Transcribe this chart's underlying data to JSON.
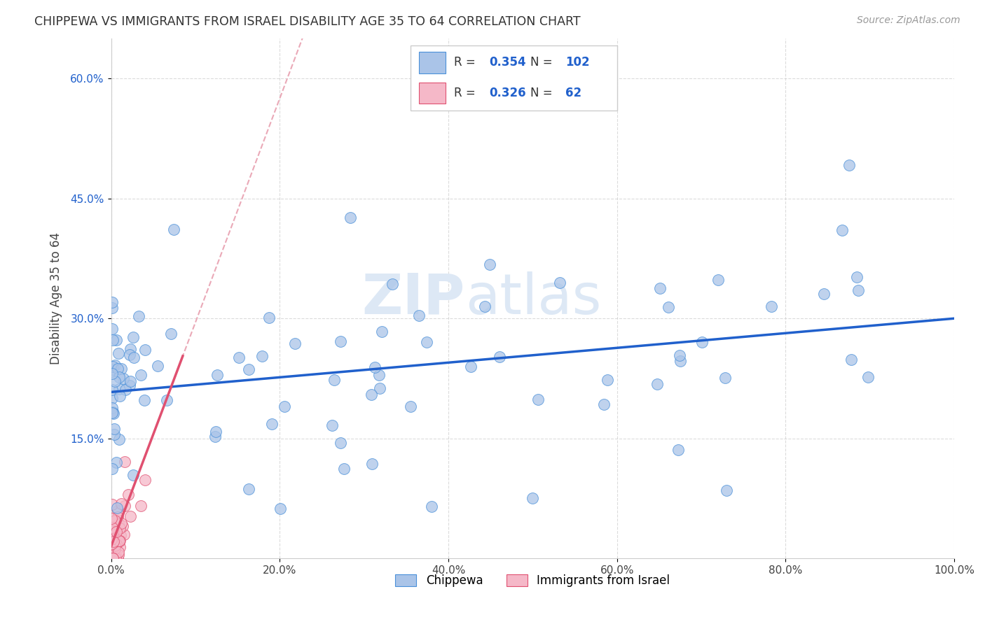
{
  "title": "CHIPPEWA VS IMMIGRANTS FROM ISRAEL DISABILITY AGE 35 TO 64 CORRELATION CHART",
  "source": "Source: ZipAtlas.com",
  "ylabel": "Disability Age 35 to 64",
  "xlim": [
    0,
    1.0
  ],
  "ylim": [
    0,
    0.65
  ],
  "xticks": [
    0.0,
    0.2,
    0.4,
    0.6,
    0.8,
    1.0
  ],
  "xtick_labels": [
    "0.0%",
    "20.0%",
    "40.0%",
    "60.0%",
    "80.0%",
    "100.0%"
  ],
  "ytick_positions": [
    0.15,
    0.3,
    0.45,
    0.6
  ],
  "ytick_labels": [
    "15.0%",
    "30.0%",
    "45.0%",
    "60.0%"
  ],
  "chippewa_fill_color": "#aac4e8",
  "chippewa_edge_color": "#4a90d9",
  "israel_fill_color": "#f5b8c8",
  "israel_edge_color": "#e05070",
  "chippewa_line_color": "#2060cc",
  "israel_solid_line_color": "#e05070",
  "israel_dashed_line_color": "#e8a0b0",
  "legend_R1": "0.354",
  "legend_N1": "102",
  "legend_R2": "0.326",
  "legend_N2": "62",
  "legend_label1": "Chippewa",
  "legend_label2": "Immigrants from Israel",
  "background_color": "#ffffff",
  "grid_color": "#cccccc",
  "watermark_text": "ZIPatlas",
  "watermark_color": "#e8e8e8",
  "chippewa_seed": 7777,
  "israel_seed": 3333,
  "n_chippewa": 102,
  "n_israel": 62
}
